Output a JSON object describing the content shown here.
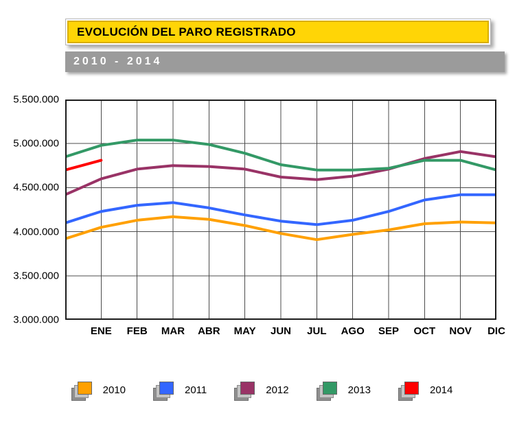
{
  "header": {
    "title": "EVOLUCIÓN DEL PARO REGISTRADO",
    "subtitle": "2010 - 2014"
  },
  "chart_data": {
    "type": "line",
    "title": "EVOLUCIÓN DEL PARO REGISTRADO",
    "subtitle": "2010 - 2014",
    "xlabel": "",
    "ylabel": "",
    "ylim": [
      3000000,
      5500000
    ],
    "grid": true,
    "legend_position": "bottom",
    "x_categories": [
      "ENE",
      "FEB",
      "MAR",
      "ABR",
      "MAY",
      "JUN",
      "JUL",
      "AGO",
      "SEP",
      "OCT",
      "NOV",
      "DIC"
    ],
    "y_ticks": [
      {
        "label": "3.000.000",
        "value": 3000000
      },
      {
        "label": "3.500.000",
        "value": 3500000
      },
      {
        "label": "4.000.000",
        "value": 4000000
      },
      {
        "label": "4.500.000",
        "value": 4500000
      },
      {
        "label": "5.000.000",
        "value": 5000000
      },
      {
        "label": "5.500.000",
        "value": 5500000
      }
    ],
    "series": [
      {
        "name": "2010",
        "color": "#FFA000",
        "start_value": 3920000,
        "values": [
          4050000,
          4130000,
          4170000,
          4140000,
          4070000,
          3980000,
          3910000,
          3970000,
          4020000,
          4090000,
          4110000,
          4100000
        ]
      },
      {
        "name": "2011",
        "color": "#3366FF",
        "start_value": 4100000,
        "values": [
          4230000,
          4300000,
          4330000,
          4270000,
          4190000,
          4120000,
          4080000,
          4130000,
          4230000,
          4360000,
          4420000,
          4420000
        ]
      },
      {
        "name": "2012",
        "color": "#993366",
        "start_value": 4420000,
        "values": [
          4600000,
          4710000,
          4750000,
          4740000,
          4710000,
          4620000,
          4590000,
          4630000,
          4710000,
          4830000,
          4910000,
          4850000
        ]
      },
      {
        "name": "2013",
        "color": "#339966",
        "start_value": 4850000,
        "values": [
          4980000,
          5040000,
          5040000,
          4990000,
          4890000,
          4760000,
          4700000,
          4700000,
          4720000,
          4810000,
          4810000,
          4700000
        ]
      },
      {
        "name": "2014",
        "color": "#FF0000",
        "start_value": 4700000,
        "values": [
          4810000
        ]
      }
    ],
    "legend": [
      "2010",
      "2011",
      "2012",
      "2013",
      "2014"
    ]
  }
}
